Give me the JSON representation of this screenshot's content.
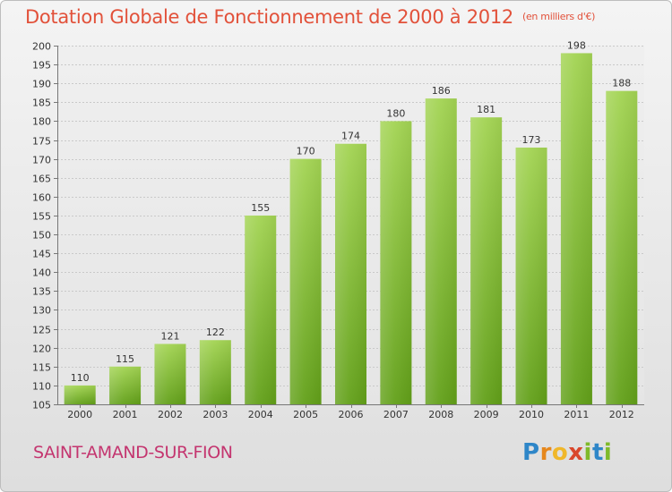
{
  "header": {
    "title": "Dotation Globale de Fonctionnement de 2000 à 2012",
    "unit": "(en milliers d'€)"
  },
  "footer": {
    "commune": "SAINT-AMAND-SUR-FION",
    "logo": "Proxiti"
  },
  "colors": {
    "title": "#e2513a",
    "commune": "#c4356f",
    "bar_top": "#9fd14f",
    "bar_bottom": "#64a11a"
  },
  "chart_data": {
    "type": "bar",
    "title": "Dotation Globale de Fonctionnement de 2000 à 2012",
    "xlabel": "",
    "ylabel": "",
    "categories": [
      "2000",
      "2001",
      "2002",
      "2003",
      "2004",
      "2005",
      "2006",
      "2007",
      "2008",
      "2009",
      "2010",
      "2011",
      "2012"
    ],
    "values": [
      110,
      115,
      121,
      122,
      155,
      170,
      174,
      180,
      186,
      181,
      173,
      198,
      188
    ],
    "ylim": [
      105,
      200
    ],
    "yticks": [
      105,
      110,
      115,
      120,
      125,
      130,
      135,
      140,
      145,
      150,
      155,
      160,
      165,
      170,
      175,
      180,
      185,
      190,
      195,
      200
    ],
    "grid": true,
    "legend": "none"
  }
}
